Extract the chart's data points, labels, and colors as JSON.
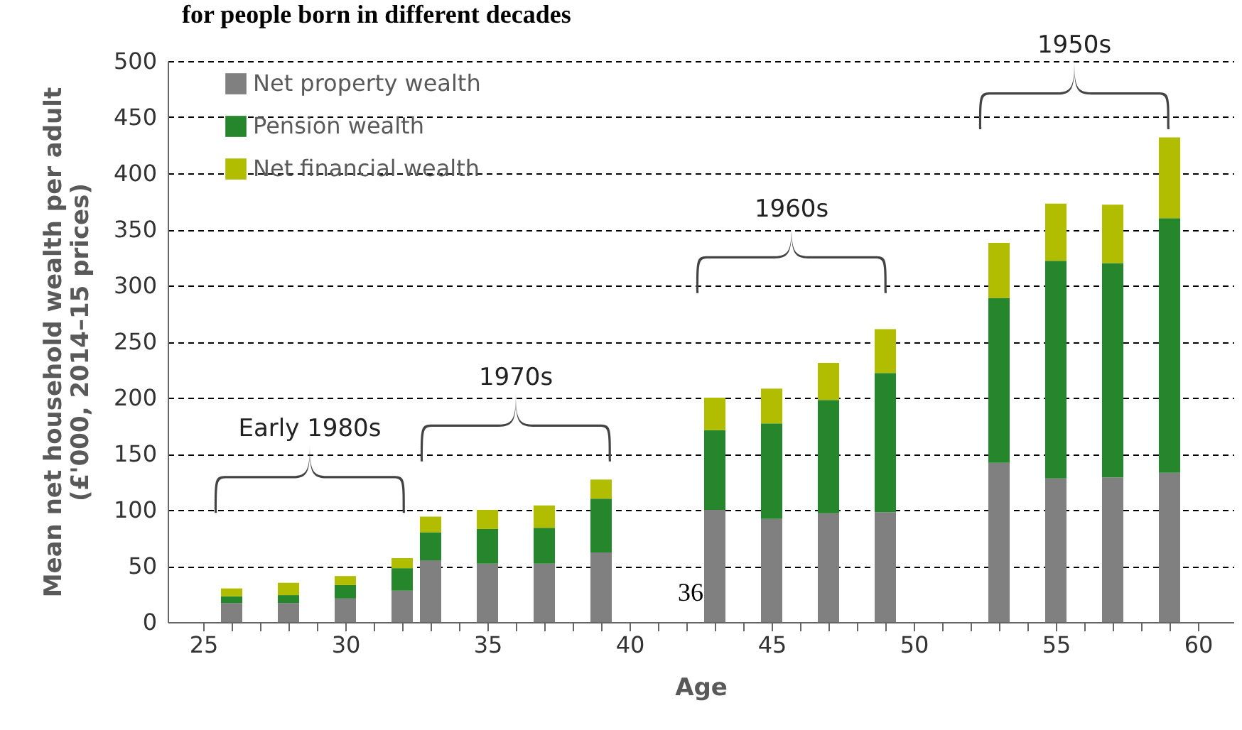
{
  "chart_data": {
    "type": "bar",
    "title": "for people born in different decades",
    "xlabel": "Age",
    "ylabel": "Mean net household wealth per adult\n(£'000, 2014–15 prices)",
    "stacked": true,
    "x": [
      26,
      28,
      30,
      32,
      33,
      35,
      37,
      39,
      43,
      45,
      47,
      49,
      53,
      55,
      57,
      59
    ],
    "series": [
      {
        "name": "Net property wealth",
        "color": "#808080",
        "values": [
          17,
          17,
          21,
          28,
          55,
          52,
          52,
          62,
          100,
          92,
          97,
          98,
          142,
          128,
          129,
          133
        ]
      },
      {
        "name": "Pension wealth",
        "color": "#26862c",
        "values": [
          6,
          7,
          12,
          20,
          25,
          31,
          32,
          48,
          71,
          85,
          101,
          124,
          147,
          194,
          191,
          227
        ]
      },
      {
        "name": "Net financial wealth",
        "color": "#b0bd00",
        "values": [
          7,
          11,
          8,
          9,
          14,
          17,
          20,
          17,
          29,
          31,
          33,
          39,
          49,
          51,
          52,
          72
        ]
      }
    ],
    "xlim": [
      23.75,
      61.25
    ],
    "xticks": [
      25,
      {
        "value": 26,
        "label": null
      },
      {
        "value": 27,
        "label": null
      },
      {
        "value": 28,
        "label": null
      },
      {
        "value": 29,
        "label": null
      },
      30,
      {
        "value": 31,
        "label": null
      },
      {
        "value": 32,
        "label": null
      },
      {
        "value": 33,
        "label": null
      },
      {
        "value": 34,
        "label": null
      },
      35,
      {
        "value": 36,
        "label": null
      },
      {
        "value": 37,
        "label": null
      },
      {
        "value": 38,
        "label": null
      },
      {
        "value": 39,
        "label": null
      },
      40,
      {
        "value": 41,
        "label": null
      },
      {
        "value": 42,
        "label": null
      },
      {
        "value": 43,
        "label": null
      },
      {
        "value": 44,
        "label": null
      },
      45,
      {
        "value": 46,
        "label": null
      },
      {
        "value": 47,
        "label": null
      },
      {
        "value": 48,
        "label": null
      },
      {
        "value": 49,
        "label": null
      },
      50,
      {
        "value": 51,
        "label": null
      },
      {
        "value": 52,
        "label": null
      },
      {
        "value": 53,
        "label": null
      },
      {
        "value": 54,
        "label": null
      },
      55,
      {
        "value": 56,
        "label": null
      },
      {
        "value": 57,
        "label": null
      },
      {
        "value": 58,
        "label": null
      },
      {
        "value": 59,
        "label": null
      },
      60
    ],
    "ylim": [
      0,
      500
    ],
    "yticks": [
      0,
      50,
      100,
      150,
      200,
      250,
      300,
      350,
      400,
      450,
      500
    ],
    "grid": "y",
    "legend": "top left",
    "annotations": [
      "Early 1980s",
      "1970s",
      "1960s",
      "1950s",
      "36"
    ]
  }
}
